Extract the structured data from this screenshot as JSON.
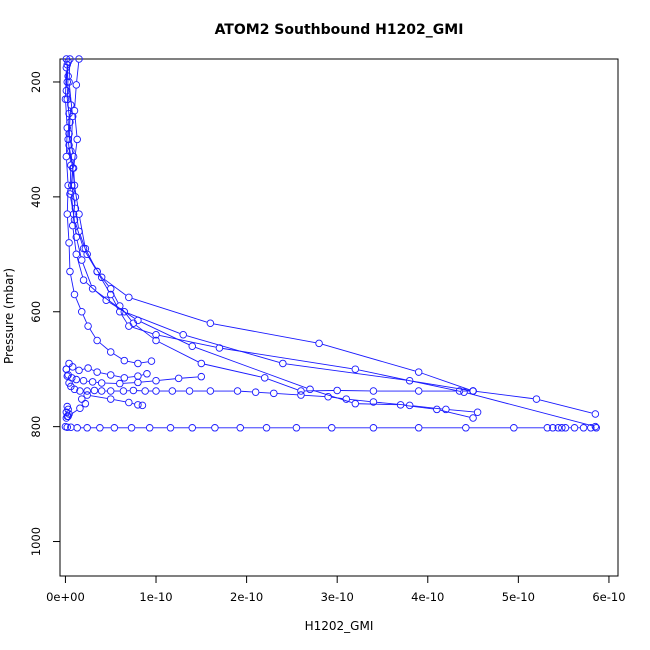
{
  "chart_data": {
    "type": "scatter",
    "title": "ATOM2 Southbound H1202_GMI",
    "xlabel": "H1202_GMI",
    "ylabel": "Pressure (mbar)",
    "xlim": [
      -6e-12,
      6.1e-10
    ],
    "ylim": [
      1060,
      160
    ],
    "y_reversed": true,
    "x_ticks": [
      0,
      1e-10,
      2e-10,
      3e-10,
      4e-10,
      5e-10,
      6e-10
    ],
    "x_tick_labels": [
      "0e+00",
      "1e-10",
      "2e-10",
      "3e-10",
      "4e-10",
      "5e-10",
      "6e-10"
    ],
    "y_ticks": [
      200,
      400,
      600,
      800,
      1000
    ],
    "y_tick_labels": [
      "200",
      "400",
      "600",
      "800",
      "1000"
    ],
    "grid": false,
    "legend": "none",
    "color": "#1a1aff",
    "series": [
      {
        "values": [
          [
            1e-12,
            160
          ],
          [
            3e-12,
            190
          ],
          [
            2e-12,
            230
          ],
          [
            5e-12,
            270
          ],
          [
            4e-12,
            310
          ],
          [
            8e-12,
            350
          ],
          [
            6e-12,
            390
          ],
          [
            9e-12,
            430
          ],
          [
            1.2e-11,
            470
          ],
          [
            1.8e-11,
            510
          ],
          [
            3e-11,
            560
          ],
          [
            6.5e-11,
            600
          ],
          [
            1.3e-10,
            640
          ],
          [
            2.4e-10,
            690
          ],
          [
            3.8e-10,
            720
          ],
          [
            4.5e-10,
            738
          ],
          [
            5.2e-10,
            752
          ],
          [
            5.85e-10,
            778
          ]
        ]
      },
      {
        "values": [
          [
            3e-12,
            165
          ],
          [
            2e-12,
            200
          ],
          [
            6e-12,
            240
          ],
          [
            4e-12,
            290
          ],
          [
            9e-12,
            330
          ],
          [
            7e-12,
            380
          ],
          [
            1.1e-11,
            420
          ],
          [
            1.5e-11,
            460
          ],
          [
            2.4e-11,
            500
          ],
          [
            4e-11,
            540
          ],
          [
            7e-11,
            575
          ],
          [
            1.6e-10,
            620
          ],
          [
            2.8e-10,
            655
          ],
          [
            3.9e-10,
            705
          ],
          [
            4.5e-10,
            738
          ]
        ]
      },
      {
        "values": [
          [
            2e-12,
            170
          ],
          [
            1e-12,
            215
          ],
          [
            4e-12,
            255
          ],
          [
            3e-12,
            300
          ],
          [
            6e-12,
            345
          ],
          [
            5e-12,
            395
          ],
          [
            1e-11,
            440
          ],
          [
            2e-11,
            490
          ],
          [
            3.5e-11,
            530
          ],
          [
            5e-11,
            570
          ],
          [
            6e-11,
            600
          ],
          [
            7e-11,
            625
          ],
          [
            1e-10,
            640
          ],
          [
            1.7e-10,
            663
          ],
          [
            3.2e-10,
            700
          ],
          [
            4.4e-10,
            740
          ],
          [
            5.85e-10,
            800
          ]
        ]
      },
      {
        "values": [
          [
            1.5e-11,
            160
          ],
          [
            1.2e-11,
            205
          ],
          [
            1e-11,
            250
          ],
          [
            1.3e-11,
            300
          ],
          [
            9e-12,
            350
          ],
          [
            1.1e-11,
            400
          ],
          [
            8e-12,
            450
          ],
          [
            1.2e-11,
            500
          ],
          [
            2e-11,
            545
          ],
          [
            4.5e-11,
            580
          ],
          [
            8e-11,
            615
          ],
          [
            1.4e-10,
            660
          ],
          [
            2.7e-10,
            735
          ],
          [
            3.2e-10,
            760
          ],
          [
            3.7e-10,
            762
          ],
          [
            4.1e-10,
            770
          ],
          [
            4.5e-10,
            785
          ]
        ]
      },
      {
        "values": [
          [
            1e-12,
            175
          ],
          [
            0,
            230
          ],
          [
            2e-12,
            280
          ],
          [
            1e-12,
            330
          ],
          [
            3e-12,
            380
          ],
          [
            2e-12,
            430
          ],
          [
            4e-12,
            480
          ],
          [
            5e-12,
            530
          ],
          [
            1e-11,
            570
          ],
          [
            1.8e-11,
            600
          ],
          [
            2.5e-11,
            625
          ],
          [
            3.5e-11,
            650
          ],
          [
            5e-11,
            670
          ],
          [
            6.5e-11,
            685
          ],
          [
            8e-11,
            690
          ],
          [
            9.5e-11,
            686
          ]
        ]
      },
      {
        "values": [
          [
            0,
            800
          ],
          [
            2e-12,
            801
          ],
          [
            6e-12,
            801
          ],
          [
            1.3e-11,
            802
          ],
          [
            2.4e-11,
            802
          ],
          [
            3.8e-11,
            802
          ],
          [
            5.4e-11,
            802
          ],
          [
            7.3e-11,
            802
          ],
          [
            9.3e-11,
            802
          ],
          [
            1.16e-10,
            802
          ],
          [
            1.4e-10,
            802
          ],
          [
            1.65e-10,
            802
          ],
          [
            1.93e-10,
            802
          ],
          [
            2.22e-10,
            802
          ],
          [
            2.55e-10,
            802
          ],
          [
            2.94e-10,
            802
          ],
          [
            3.4e-10,
            802
          ],
          [
            3.9e-10,
            802
          ],
          [
            4.42e-10,
            802
          ],
          [
            4.95e-10,
            802
          ],
          [
            5.32e-10,
            802
          ],
          [
            5.38e-10,
            802
          ],
          [
            5.44e-10,
            802
          ],
          [
            5.48e-10,
            802
          ],
          [
            5.52e-10,
            802
          ],
          [
            5.62e-10,
            802
          ],
          [
            5.72e-10,
            802
          ],
          [
            5.8e-10,
            802
          ],
          [
            5.86e-10,
            802
          ]
        ]
      },
      {
        "values": [
          [
            5e-12,
            160
          ],
          [
            4e-12,
            200
          ],
          [
            8e-12,
            260
          ],
          [
            6e-12,
            320
          ],
          [
            1e-11,
            380
          ],
          [
            1.5e-11,
            430
          ],
          [
            2.2e-11,
            490
          ],
          [
            3.5e-11,
            530
          ],
          [
            5e-11,
            560
          ],
          [
            6e-11,
            590
          ],
          [
            7.5e-11,
            620
          ],
          [
            1e-10,
            650
          ],
          [
            1.5e-10,
            690
          ],
          [
            2.2e-10,
            715
          ],
          [
            2.6e-10,
            738
          ],
          [
            3e-10,
            737
          ],
          [
            3.4e-10,
            738
          ],
          [
            3.9e-10,
            738
          ],
          [
            4.35e-10,
            738
          ],
          [
            4.5e-10,
            738
          ]
        ]
      },
      {
        "values": [
          [
            1e-12,
            700
          ],
          [
            2e-12,
            712
          ],
          [
            4e-12,
            724
          ],
          [
            6e-12,
            730
          ],
          [
            1e-11,
            735
          ],
          [
            1.6e-11,
            738
          ],
          [
            2.4e-11,
            738
          ],
          [
            3.2e-11,
            737
          ],
          [
            4e-11,
            738
          ],
          [
            5e-11,
            738
          ],
          [
            6.4e-11,
            738
          ],
          [
            7.5e-11,
            737
          ],
          [
            8.8e-11,
            738
          ],
          [
            1e-10,
            738
          ],
          [
            1.18e-10,
            738
          ],
          [
            1.37e-10,
            738
          ],
          [
            1.6e-10,
            738
          ],
          [
            1.9e-10,
            738
          ],
          [
            2.1e-10,
            740
          ],
          [
            2.3e-10,
            742
          ],
          [
            2.6e-10,
            745
          ],
          [
            2.9e-10,
            748
          ],
          [
            3.1e-10,
            752
          ],
          [
            3.4e-10,
            757
          ],
          [
            3.8e-10,
            763
          ],
          [
            4.2e-10,
            770
          ],
          [
            4.55e-10,
            775
          ]
        ]
      },
      {
        "values": [
          [
            1e-12,
            700
          ],
          [
            3e-12,
            710
          ],
          [
            7e-12,
            715
          ],
          [
            1.2e-11,
            718
          ],
          [
            2e-11,
            720
          ],
          [
            3e-11,
            722
          ],
          [
            4e-11,
            724
          ],
          [
            6e-11,
            725
          ],
          [
            8e-11,
            723
          ],
          [
            1e-10,
            720
          ],
          [
            1.25e-10,
            716
          ],
          [
            1.5e-10,
            713
          ]
        ]
      },
      {
        "values": [
          [
            4e-12,
            690
          ],
          [
            8e-12,
            696
          ],
          [
            1.5e-11,
            702
          ],
          [
            2.5e-11,
            698
          ],
          [
            3.5e-11,
            705
          ],
          [
            5e-11,
            710
          ],
          [
            6.5e-11,
            715
          ],
          [
            8e-11,
            712
          ],
          [
            9e-11,
            708
          ]
        ]
      },
      {
        "values": [
          [
            2e-12,
            765
          ],
          [
            3e-12,
            770
          ],
          [
            1e-12,
            775
          ],
          [
            4e-12,
            778
          ],
          [
            2e-12,
            782
          ],
          [
            1e-12,
            785
          ],
          [
            3e-12,
            782
          ],
          [
            1.6e-11,
            768
          ],
          [
            2.2e-11,
            760
          ],
          [
            1.8e-11,
            752
          ],
          [
            2.4e-11,
            745
          ],
          [
            5e-11,
            752
          ],
          [
            7e-11,
            758
          ],
          [
            8e-11,
            762
          ],
          [
            8.5e-11,
            763
          ]
        ]
      }
    ]
  }
}
